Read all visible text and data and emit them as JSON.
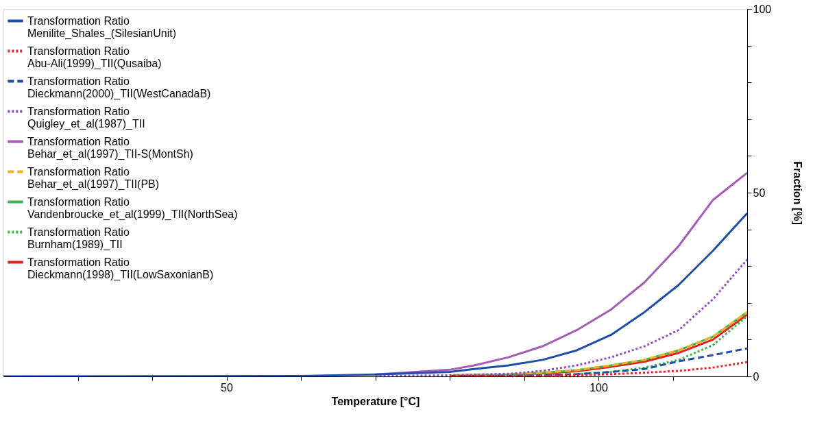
{
  "chart_data": {
    "type": "line",
    "xlabel": "Temperature [°C]",
    "ylabel": "Fraction [%]",
    "x": [
      20,
      60,
      70,
      80,
      83.3,
      87.9,
      92.5,
      97.1,
      101.7,
      106.2,
      110.8,
      115.4,
      120
    ],
    "xlim": [
      20,
      120
    ],
    "xticks": [
      {
        "value": 30,
        "label": null
      },
      {
        "value": 40,
        "label": null
      },
      50,
      {
        "value": 60,
        "label": null
      },
      {
        "value": 70,
        "label": null
      },
      {
        "value": 80,
        "label": null
      },
      {
        "value": 90,
        "label": null
      },
      100,
      {
        "value": 110,
        "label": null
      }
    ],
    "ylim": [
      0,
      100
    ],
    "yticks": [
      0,
      {
        "value": 10,
        "label": null
      },
      {
        "value": 20,
        "label": null
      },
      {
        "value": 30,
        "label": null
      },
      {
        "value": 40,
        "label": null
      },
      50,
      {
        "value": 60,
        "label": null
      },
      {
        "value": 70,
        "label": null
      },
      {
        "value": 80,
        "label": null
      },
      {
        "value": 90,
        "label": null
      },
      100
    ],
    "grid": false,
    "legend": "top left",
    "marker": "none",
    "series": [
      {
        "name": "Transformation Ratio\nMenilite_Shales_(SilesianUnit)",
        "color": "#1f4ea8",
        "line_style": "solid",
        "values": [
          0,
          0.1,
          0.5,
          1.2,
          2.0,
          3.0,
          4.5,
          7.1,
          11.3,
          17.5,
          24.9,
          34.2,
          44.4
        ]
      },
      {
        "name": "Transformation Ratio\nAbu-Ali(1999)_TII(Qusaiba)",
        "color": "#e8262a",
        "line_style": "dotted",
        "values": [
          null,
          null,
          null,
          0,
          0.1,
          0.1,
          0.2,
          0.3,
          0.6,
          1.0,
          1.5,
          2.4,
          3.9
        ]
      },
      {
        "name": "Transformation Ratio\nDieckmann(2000)_TII(WestCanadaB)",
        "color": "#1f4ea8",
        "line_style": "dashed",
        "values": [
          null,
          null,
          null,
          0.1,
          0.1,
          0.2,
          0.3,
          0.6,
          1.2,
          2.0,
          4.1,
          5.8,
          7.6
        ]
      },
      {
        "name": "Transformation Ratio\nQuigley_et_al(1987)_TII",
        "color": "#8e4fc0",
        "line_style": "dotted",
        "values": [
          null,
          null,
          0.1,
          0.3,
          0.5,
          0.7,
          1.5,
          3.0,
          5.2,
          8.2,
          12.6,
          21,
          31.8
        ]
      },
      {
        "name": "Transformation Ratio\nBehar_et_al(1997)_TII-S(MontSh)",
        "color": "#a55cb8",
        "line_style": "solid",
        "values": [
          null,
          null,
          0.5,
          1.8,
          3.0,
          5.2,
          8.2,
          12.6,
          18.2,
          25.6,
          35.5,
          48,
          55.4
        ]
      },
      {
        "name": "Transformation Ratio\nBehar_et_al(1997)_TII(PB)",
        "color": "#f0b323",
        "line_style": "dashed",
        "values": [
          null,
          null,
          null,
          0.3,
          0.4,
          0.5,
          1.0,
          1.7,
          3.0,
          4.5,
          7.1,
          10.8,
          17.5
        ]
      },
      {
        "name": "Transformation Ratio\nVandenbroucke_et_al(1999)_TII(NorthSea)",
        "color": "#3cb54a",
        "line_style": "solid",
        "values": [
          null,
          null,
          null,
          0.3,
          0.4,
          0.5,
          1.0,
          1.7,
          3.0,
          4.5,
          7.1,
          10.8,
          17.5
        ]
      },
      {
        "name": "Transformation Ratio\nBurnham(1989)_TII",
        "color": "#3cb54a",
        "line_style": "dotted",
        "values": [
          null,
          null,
          null,
          0.1,
          0.1,
          0.2,
          0.3,
          0.6,
          1.2,
          2.4,
          4.5,
          8.5,
          16.4
        ]
      },
      {
        "name": "Transformation Ratio\nDieckmann(1998)_TII(LowSaxonianB)",
        "color": "#e82020",
        "line_style": "solid",
        "values": [
          null,
          null,
          null,
          0.2,
          0.3,
          0.4,
          0.8,
          1.4,
          2.6,
          4.0,
          6.4,
          10.0,
          16.8
        ]
      }
    ]
  }
}
